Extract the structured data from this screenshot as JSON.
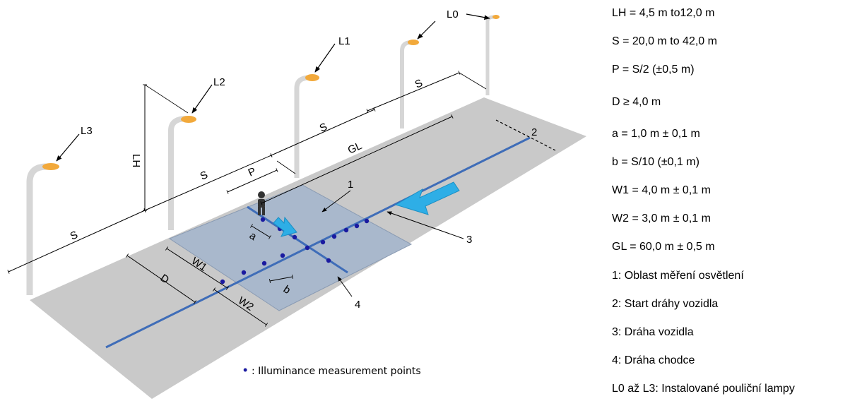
{
  "diagram": {
    "lamps": {
      "l0": "L0",
      "l1": "L1",
      "l2": "L2",
      "l3": "L3"
    },
    "dimensions": {
      "lh": "LH",
      "s": "S",
      "p": "P",
      "gl": "GL",
      "d": "D",
      "w1": "W1",
      "w2": "W2",
      "a": "a",
      "b": "b"
    },
    "zones": {
      "z1": "1",
      "z2": "2",
      "z3": "3",
      "z4": "4"
    },
    "legend": {
      "marker": "•",
      "text": ":  Illuminance measurement points"
    },
    "colors": {
      "road": "#c9c9c9",
      "measurement_area": "#a9b8cc",
      "vehicle_path": "#3f6db8",
      "direction_arrow": "#2eaee6",
      "measurement_point": "#1a1aa0",
      "lamp_pole": "#e0e0e0",
      "lamp_light": "#f2a93b"
    },
    "icons": {
      "pedestrian": "pedestrian-icon",
      "vehicle_direction": "arrow-left-icon",
      "pedestrian_direction": "arrow-right-icon"
    }
  },
  "specs": [
    "LH = 4,5 m to12,0 m",
    "S = 20,0 m to 42,0 m",
    "P = S/2 (±0,5 m)",
    "D ≥ 4,0 m",
    "a = 1,0 m ± 0,1 m",
    "b = S/10 (±0,1 m)",
    "W1 = 4,0 m ± 0,1 m",
    "W2 = 3,0 m ± 0,1 m",
    "GL = 60,0 m ± 0,5 m",
    "1: Oblast měření osvětlení",
    "2: Start dráhy vozidla",
    "3: Dráha vozidla",
    "4: Dráha chodce",
    "L0 až L3: Instalované pouliční  lampy"
  ]
}
